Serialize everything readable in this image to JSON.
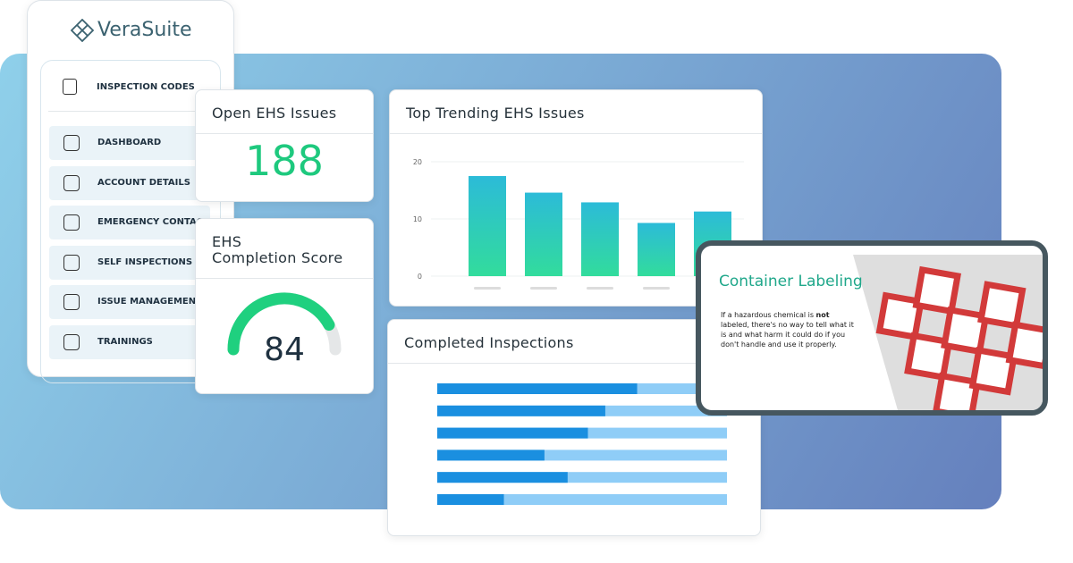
{
  "brand": "VeraSuite",
  "sidebar": {
    "header": "INSPECTION CODES",
    "items": [
      "DASHBOARD",
      "ACCOUNT DETAILS",
      "EMERGENCY CONTACT",
      "SELF INSPECTIONS",
      "ISSUE MANAGEMENT",
      "TRAININGS"
    ]
  },
  "open_issues": {
    "title": "Open EHS Issues",
    "value": 188
  },
  "completion": {
    "title_line1": "EHS",
    "title_line2": "Completion Score",
    "value": 84,
    "range": [
      0,
      100
    ]
  },
  "trending": {
    "title": "Top Trending EHS Issues",
    "chart_data": {
      "type": "bar",
      "values": [
        17.5,
        14.6,
        12.9,
        9.3,
        11.3
      ],
      "ylim": [
        0,
        20
      ],
      "yticks": [
        0,
        10,
        20
      ],
      "grid": true,
      "color": [
        "#2cbbd8",
        "#32dc9c"
      ]
    }
  },
  "inspections": {
    "title": "Completed Inspections",
    "chart_data": {
      "type": "progress",
      "values": [
        69,
        58,
        52,
        37,
        45,
        23
      ],
      "xlim": [
        0,
        100
      ],
      "color": "#1a8fe0",
      "track_color": "#8fcdf7"
    }
  },
  "labeling": {
    "title": "Container Labeling",
    "body_before": "If a hazardous chemical is ",
    "body_bold": "not",
    "body_after": " labeled, there's no way to tell what it is and what harm it could do if you don't handle and use it properly."
  }
}
